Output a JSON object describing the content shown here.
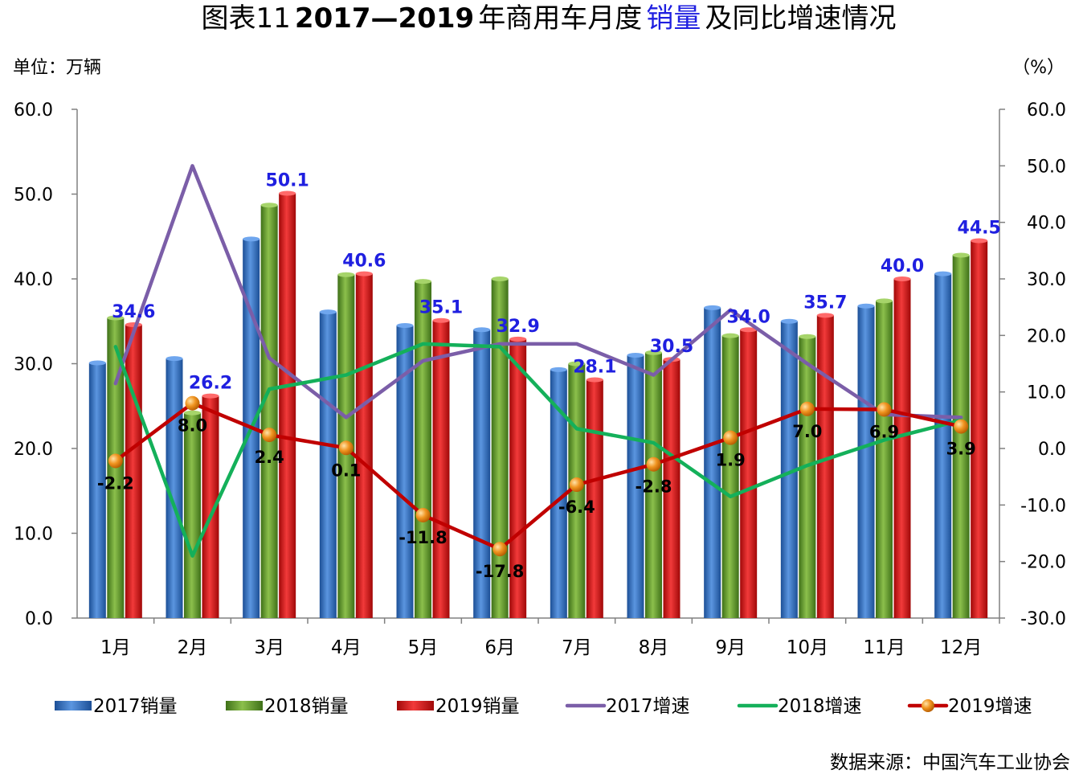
{
  "title": {
    "prefix": "图表11",
    "bold_part": "2017—2019",
    "part1": "年商用车月度",
    "highlight": "销量",
    "part2": "及同比增速情况",
    "highlight_color": "#1f1fe0"
  },
  "unit_left": "单位：万辆",
  "unit_right": "（%）",
  "source": "数据来源：中国汽车工业协会",
  "colors": {
    "bar_2017": "#2e6fc4",
    "bar_2018": "#5f9a2a",
    "bar_2019": "#d11414",
    "line_2017": "#7b5ea8",
    "line_2018": "#14b05a",
    "line_2019": "#c00000",
    "marker_2019": "#ee8a10",
    "bar_label": "#1f1fe0",
    "axis": "#808080"
  },
  "chart_data": {
    "type": "bar",
    "categories": [
      "1月",
      "2月",
      "3月",
      "4月",
      "5月",
      "6月",
      "7月",
      "8月",
      "9月",
      "10月",
      "11月",
      "12月"
    ],
    "y_left": {
      "min": 0,
      "max": 60,
      "step": 10,
      "ticks": [
        "0.0",
        "10.0",
        "20.0",
        "30.0",
        "40.0",
        "50.0",
        "60.0"
      ]
    },
    "y_right": {
      "min": -30,
      "max": 60,
      "step": 10,
      "ticks": [
        "-30.0",
        "-20.0",
        "-10.0",
        "0.0",
        "10.0",
        "20.0",
        "30.0",
        "40.0",
        "50.0",
        "60.0"
      ]
    },
    "bar_series": [
      {
        "name": "2017销量",
        "values": [
          30.1,
          30.6,
          44.7,
          36.1,
          34.5,
          34.0,
          29.3,
          31.0,
          36.6,
          35.0,
          36.8,
          40.6
        ]
      },
      {
        "name": "2018销量",
        "values": [
          35.4,
          24.2,
          48.7,
          40.5,
          39.7,
          40.0,
          30.0,
          31.3,
          33.3,
          33.2,
          37.4,
          42.8
        ]
      },
      {
        "name": "2019销量",
        "values": [
          34.6,
          26.2,
          50.1,
          40.6,
          35.1,
          32.9,
          28.1,
          30.5,
          34.0,
          35.7,
          40.0,
          44.5
        ],
        "labels": [
          "34.6",
          "26.2",
          "50.1",
          "40.6",
          "35.1",
          "32.9",
          "28.1",
          "30.5",
          "34.0",
          "35.7",
          "40.0",
          "44.5"
        ]
      }
    ],
    "line_series": [
      {
        "name": "2017增速",
        "values": [
          11.5,
          50.0,
          16.0,
          5.5,
          15.5,
          18.5,
          18.5,
          13.0,
          24.5,
          15.0,
          6.0,
          5.5
        ]
      },
      {
        "name": "2018增速",
        "values": [
          18.0,
          -19.0,
          10.5,
          13.0,
          18.5,
          18.0,
          3.5,
          1.0,
          -8.5,
          -3.0,
          1.5,
          5.0
        ]
      },
      {
        "name": "2019增速",
        "values": [
          -2.2,
          8.0,
          2.4,
          0.1,
          -11.8,
          -17.8,
          -6.4,
          -2.8,
          1.9,
          7.0,
          6.9,
          3.9
        ],
        "labels": [
          "-2.2",
          "8.0",
          "2.4",
          "0.1",
          "-11.8",
          "-17.8",
          "-6.4",
          "-2.8",
          "1.9",
          "7.0",
          "6.9",
          "3.9"
        ]
      }
    ],
    "legend": [
      "2017销量",
      "2018销量",
      "2019销量",
      "2017增速",
      "2018增速",
      "2019增速"
    ],
    "legend_position": "bottom",
    "grid": false
  }
}
